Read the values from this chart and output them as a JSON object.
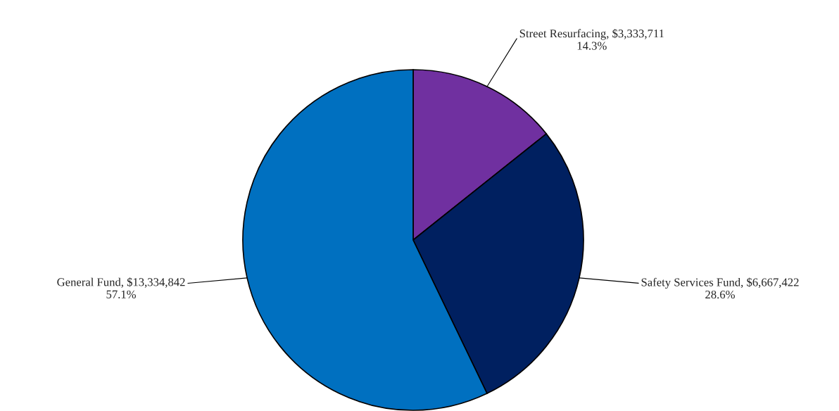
{
  "chart_data": {
    "type": "pie",
    "categories": [
      "Street Resurfacing",
      "Safety Services Fund",
      "General Fund"
    ],
    "values": [
      3333711,
      6667422,
      13334842
    ],
    "value_labels": [
      "$3,333,711\n14.3%",
      "$6,667,422\n28.6%",
      "$13,334,842\n57.1%"
    ],
    "colors": [
      "#7030a0",
      "#002060",
      "#0070c0"
    ],
    "legend": false
  }
}
